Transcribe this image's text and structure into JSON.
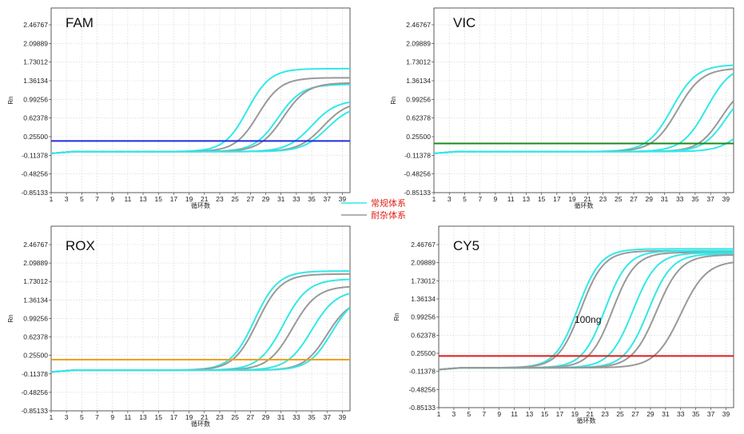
{
  "legend": {
    "items": [
      {
        "label": "常规体系",
        "color": "#33e8e8"
      },
      {
        "label": "耐杂体系",
        "color": "#999999"
      }
    ],
    "text_color": "#e0231a"
  },
  "chart_data": [
    {
      "type": "line",
      "title": "FAM",
      "xlabel": "循环数",
      "ylabel": "Rn",
      "xlim": [
        1,
        40
      ],
      "ylim": [
        -0.85133,
        2.6
      ],
      "x_ticks": [
        1,
        3,
        5,
        7,
        9,
        11,
        13,
        15,
        17,
        19,
        21,
        23,
        25,
        27,
        29,
        31,
        33,
        35,
        37,
        39
      ],
      "y_ticks": [
        "2.46767",
        "2.09889",
        "1.73012",
        "1.36134",
        "0.99256",
        "0.62378",
        "0.25500",
        "-0.11378",
        "-0.48256",
        "-0.85133"
      ],
      "threshold": {
        "value": 0.17,
        "color": "#1c2ee0"
      },
      "annotation": "",
      "series": [
        {
          "name": "常规体系",
          "color": "#33e8e8",
          "plateau": 1.64,
          "midpoint": 26.6,
          "slope": 1.5
        },
        {
          "name": "耐杂体系",
          "color": "#999999",
          "plateau": 1.46,
          "midpoint": 28.0,
          "slope": 1.5
        },
        {
          "name": "常规体系",
          "color": "#33e8e8",
          "plateau": 1.33,
          "midpoint": 30.6,
          "slope": 1.55
        },
        {
          "name": "耐杂体系",
          "color": "#999999",
          "plateau": 1.36,
          "midpoint": 31.3,
          "slope": 1.55
        },
        {
          "name": "常规体系",
          "color": "#33e8e8",
          "plateau": 1.02,
          "midpoint": 35.0,
          "slope": 1.6
        },
        {
          "name": "耐杂体系",
          "color": "#999999",
          "plateau": 1.0,
          "midpoint": 36.5,
          "slope": 1.6
        },
        {
          "name": "常规体系",
          "color": "#33e8e8",
          "plateau": 0.92,
          "midpoint": 37.0,
          "slope": 1.6
        }
      ]
    },
    {
      "type": "line",
      "title": "VIC",
      "xlabel": "循环数",
      "ylabel": "Rn",
      "xlim": [
        1,
        40
      ],
      "ylim": [
        -0.85133,
        2.6
      ],
      "x_ticks": [
        1,
        3,
        5,
        7,
        9,
        11,
        13,
        15,
        17,
        19,
        21,
        23,
        25,
        27,
        29,
        31,
        33,
        35,
        37,
        39
      ],
      "y_ticks": [
        "2.46767",
        "2.09889",
        "1.73012",
        "1.36134",
        "0.99256",
        "0.62378",
        "0.25500",
        "-0.11378",
        "-0.48256",
        "-0.85133"
      ],
      "threshold": {
        "value": 0.12,
        "color": "#1a8a1a"
      },
      "annotation": "",
      "series": [
        {
          "name": "常规体系",
          "color": "#33e8e8",
          "plateau": 1.72,
          "midpoint": 32.0,
          "slope": 1.6
        },
        {
          "name": "耐杂体系",
          "color": "#999999",
          "plateau": 1.65,
          "midpoint": 32.7,
          "slope": 1.6
        },
        {
          "name": "常规体系",
          "color": "#33e8e8",
          "plateau": 1.72,
          "midpoint": 36.5,
          "slope": 1.6
        },
        {
          "name": "耐杂体系",
          "color": "#999999",
          "plateau": 1.35,
          "midpoint": 38.4,
          "slope": 1.5
        },
        {
          "name": "常规体系",
          "color": "#33e8e8",
          "plateau": 1.3,
          "midpoint": 39.0,
          "slope": 1.5
        },
        {
          "name": "常规体系",
          "color": "#33e8e8",
          "plateau": 0.9,
          "midpoint": 41.5,
          "slope": 1.6
        }
      ]
    },
    {
      "type": "line",
      "title": "ROX",
      "xlabel": "循环数",
      "ylabel": "Rn",
      "xlim": [
        1,
        40
      ],
      "ylim": [
        -0.85133,
        2.6
      ],
      "x_ticks": [
        1,
        3,
        5,
        7,
        9,
        11,
        13,
        15,
        17,
        19,
        21,
        23,
        25,
        27,
        29,
        31,
        33,
        35,
        37,
        39
      ],
      "y_ticks": [
        "2.46767",
        "2.09889",
        "1.73012",
        "1.36134",
        "0.99256",
        "0.62378",
        "0.25500",
        "-0.11378",
        "-0.48256",
        "-0.85133"
      ],
      "threshold": {
        "value": 0.17,
        "color": "#f0a020"
      },
      "annotation": "",
      "series": [
        {
          "name": "常规体系",
          "color": "#33e8e8",
          "plateau": 1.98,
          "midpoint": 27.5,
          "slope": 1.55
        },
        {
          "name": "耐杂体系",
          "color": "#999999",
          "plateau": 1.92,
          "midpoint": 27.9,
          "slope": 1.55
        },
        {
          "name": "常规体系",
          "color": "#33e8e8",
          "plateau": 1.82,
          "midpoint": 31.3,
          "slope": 1.6
        },
        {
          "name": "耐杂体系",
          "color": "#999999",
          "plateau": 1.68,
          "midpoint": 32.5,
          "slope": 1.6
        },
        {
          "name": "常规体系",
          "color": "#33e8e8",
          "plateau": 1.6,
          "midpoint": 35.0,
          "slope": 1.6
        },
        {
          "name": "耐杂体系",
          "color": "#999999",
          "plateau": 1.42,
          "midpoint": 37.0,
          "slope": 1.5
        },
        {
          "name": "常规体系",
          "color": "#33e8e8",
          "plateau": 1.5,
          "midpoint": 37.6,
          "slope": 1.5
        }
      ]
    },
    {
      "type": "line",
      "title": "CY5",
      "xlabel": "循环数",
      "ylabel": "Rn",
      "xlim": [
        1,
        40
      ],
      "ylim": [
        -0.85133,
        2.6
      ],
      "x_ticks": [
        1,
        3,
        5,
        7,
        9,
        11,
        13,
        15,
        17,
        19,
        21,
        23,
        25,
        27,
        29,
        31,
        33,
        35,
        37,
        39
      ],
      "y_ticks": [
        "2.46767",
        "2.09889",
        "1.73012",
        "1.36134",
        "0.99256",
        "0.62378",
        "0.25500",
        "-0.11378",
        "-0.48256",
        "-0.85133"
      ],
      "threshold": {
        "value": 0.2,
        "color": "#e01a1a"
      },
      "annotation": "100ng",
      "series": [
        {
          "name": "常规体系",
          "color": "#33e8e8",
          "plateau": 2.42,
          "midpoint": 19.4,
          "slope": 1.5
        },
        {
          "name": "耐杂体系",
          "color": "#999999",
          "plateau": 2.38,
          "midpoint": 19.8,
          "slope": 1.5
        },
        {
          "name": "常规体系",
          "color": "#33e8e8",
          "plateau": 2.38,
          "midpoint": 23.0,
          "slope": 1.5
        },
        {
          "name": "耐杂体系",
          "color": "#999999",
          "plateau": 2.35,
          "midpoint": 24.0,
          "slope": 1.5
        },
        {
          "name": "常规体系",
          "color": "#33e8e8",
          "plateau": 2.34,
          "midpoint": 26.7,
          "slope": 1.55
        },
        {
          "name": "常规体系",
          "color": "#33e8e8",
          "plateau": 2.32,
          "midpoint": 28.7,
          "slope": 1.55
        },
        {
          "name": "耐杂体系",
          "color": "#999999",
          "plateau": 2.3,
          "midpoint": 29.8,
          "slope": 1.6
        },
        {
          "name": "耐杂体系",
          "color": "#999999",
          "plateau": 2.18,
          "midpoint": 33.0,
          "slope": 1.7
        }
      ]
    }
  ]
}
